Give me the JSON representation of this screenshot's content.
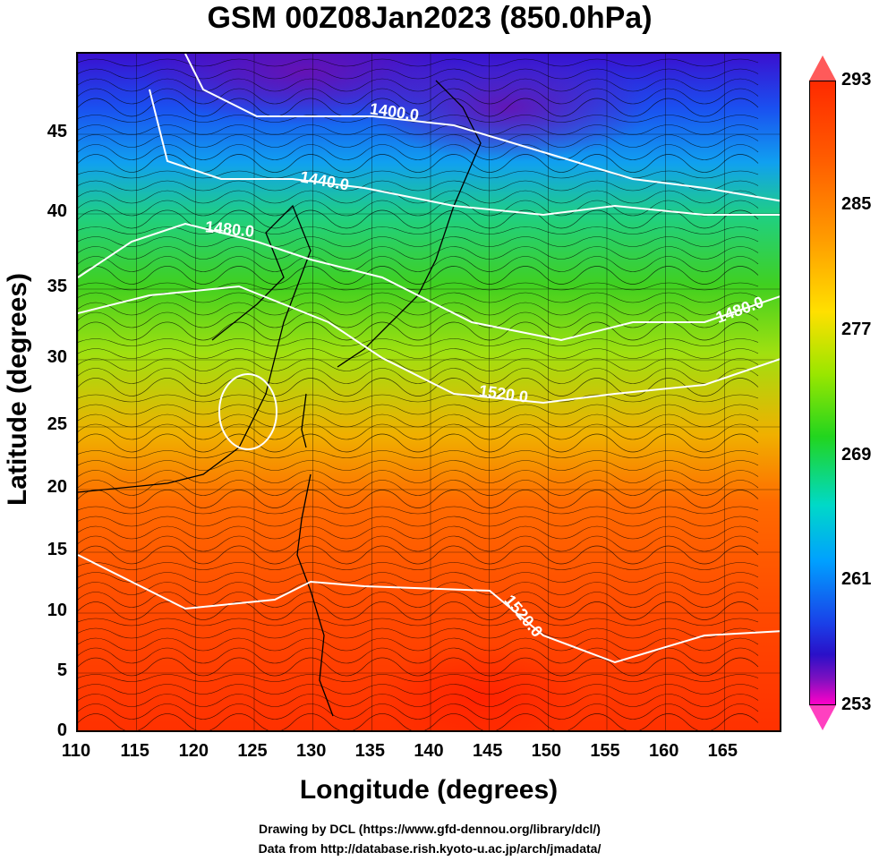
{
  "title": "GSM 00Z08Jan2023 (850.0hPa)",
  "map": {
    "xlabel": "Longitude (degrees)",
    "ylabel": "Latitude  (degrees)",
    "x_ticks": [
      "110",
      "115",
      "120",
      "125",
      "130",
      "135",
      "140",
      "145",
      "150",
      "155",
      "160",
      "165"
    ],
    "y_ticks": [
      "45",
      "40",
      "35",
      "30",
      "25",
      "20",
      "15",
      "10",
      "5",
      "0"
    ],
    "xlim": [
      110,
      170
    ],
    "ylim": [
      0,
      50
    ],
    "grid": true,
    "contour_labels": [
      "1400.0",
      "1440.0",
      "1480.0",
      "1480.0",
      "1520.0",
      "1520.0"
    ]
  },
  "colorbar": {
    "ticks": [
      "293",
      "285",
      "277",
      "269",
      "261",
      "253"
    ],
    "range": [
      253,
      293
    ],
    "colors": [
      "#ff2a00",
      "#ffe000",
      "#22d51e",
      "#00d9c8",
      "#1a40e8",
      "#ff00c8"
    ]
  },
  "credits": {
    "line1": "Drawing by DCL (https://www.gfd-dennou.org/library/dcl/)",
    "line2": "Data from http://database.rish.kyoto-u.ac.jp/arch/jmadata/"
  }
}
